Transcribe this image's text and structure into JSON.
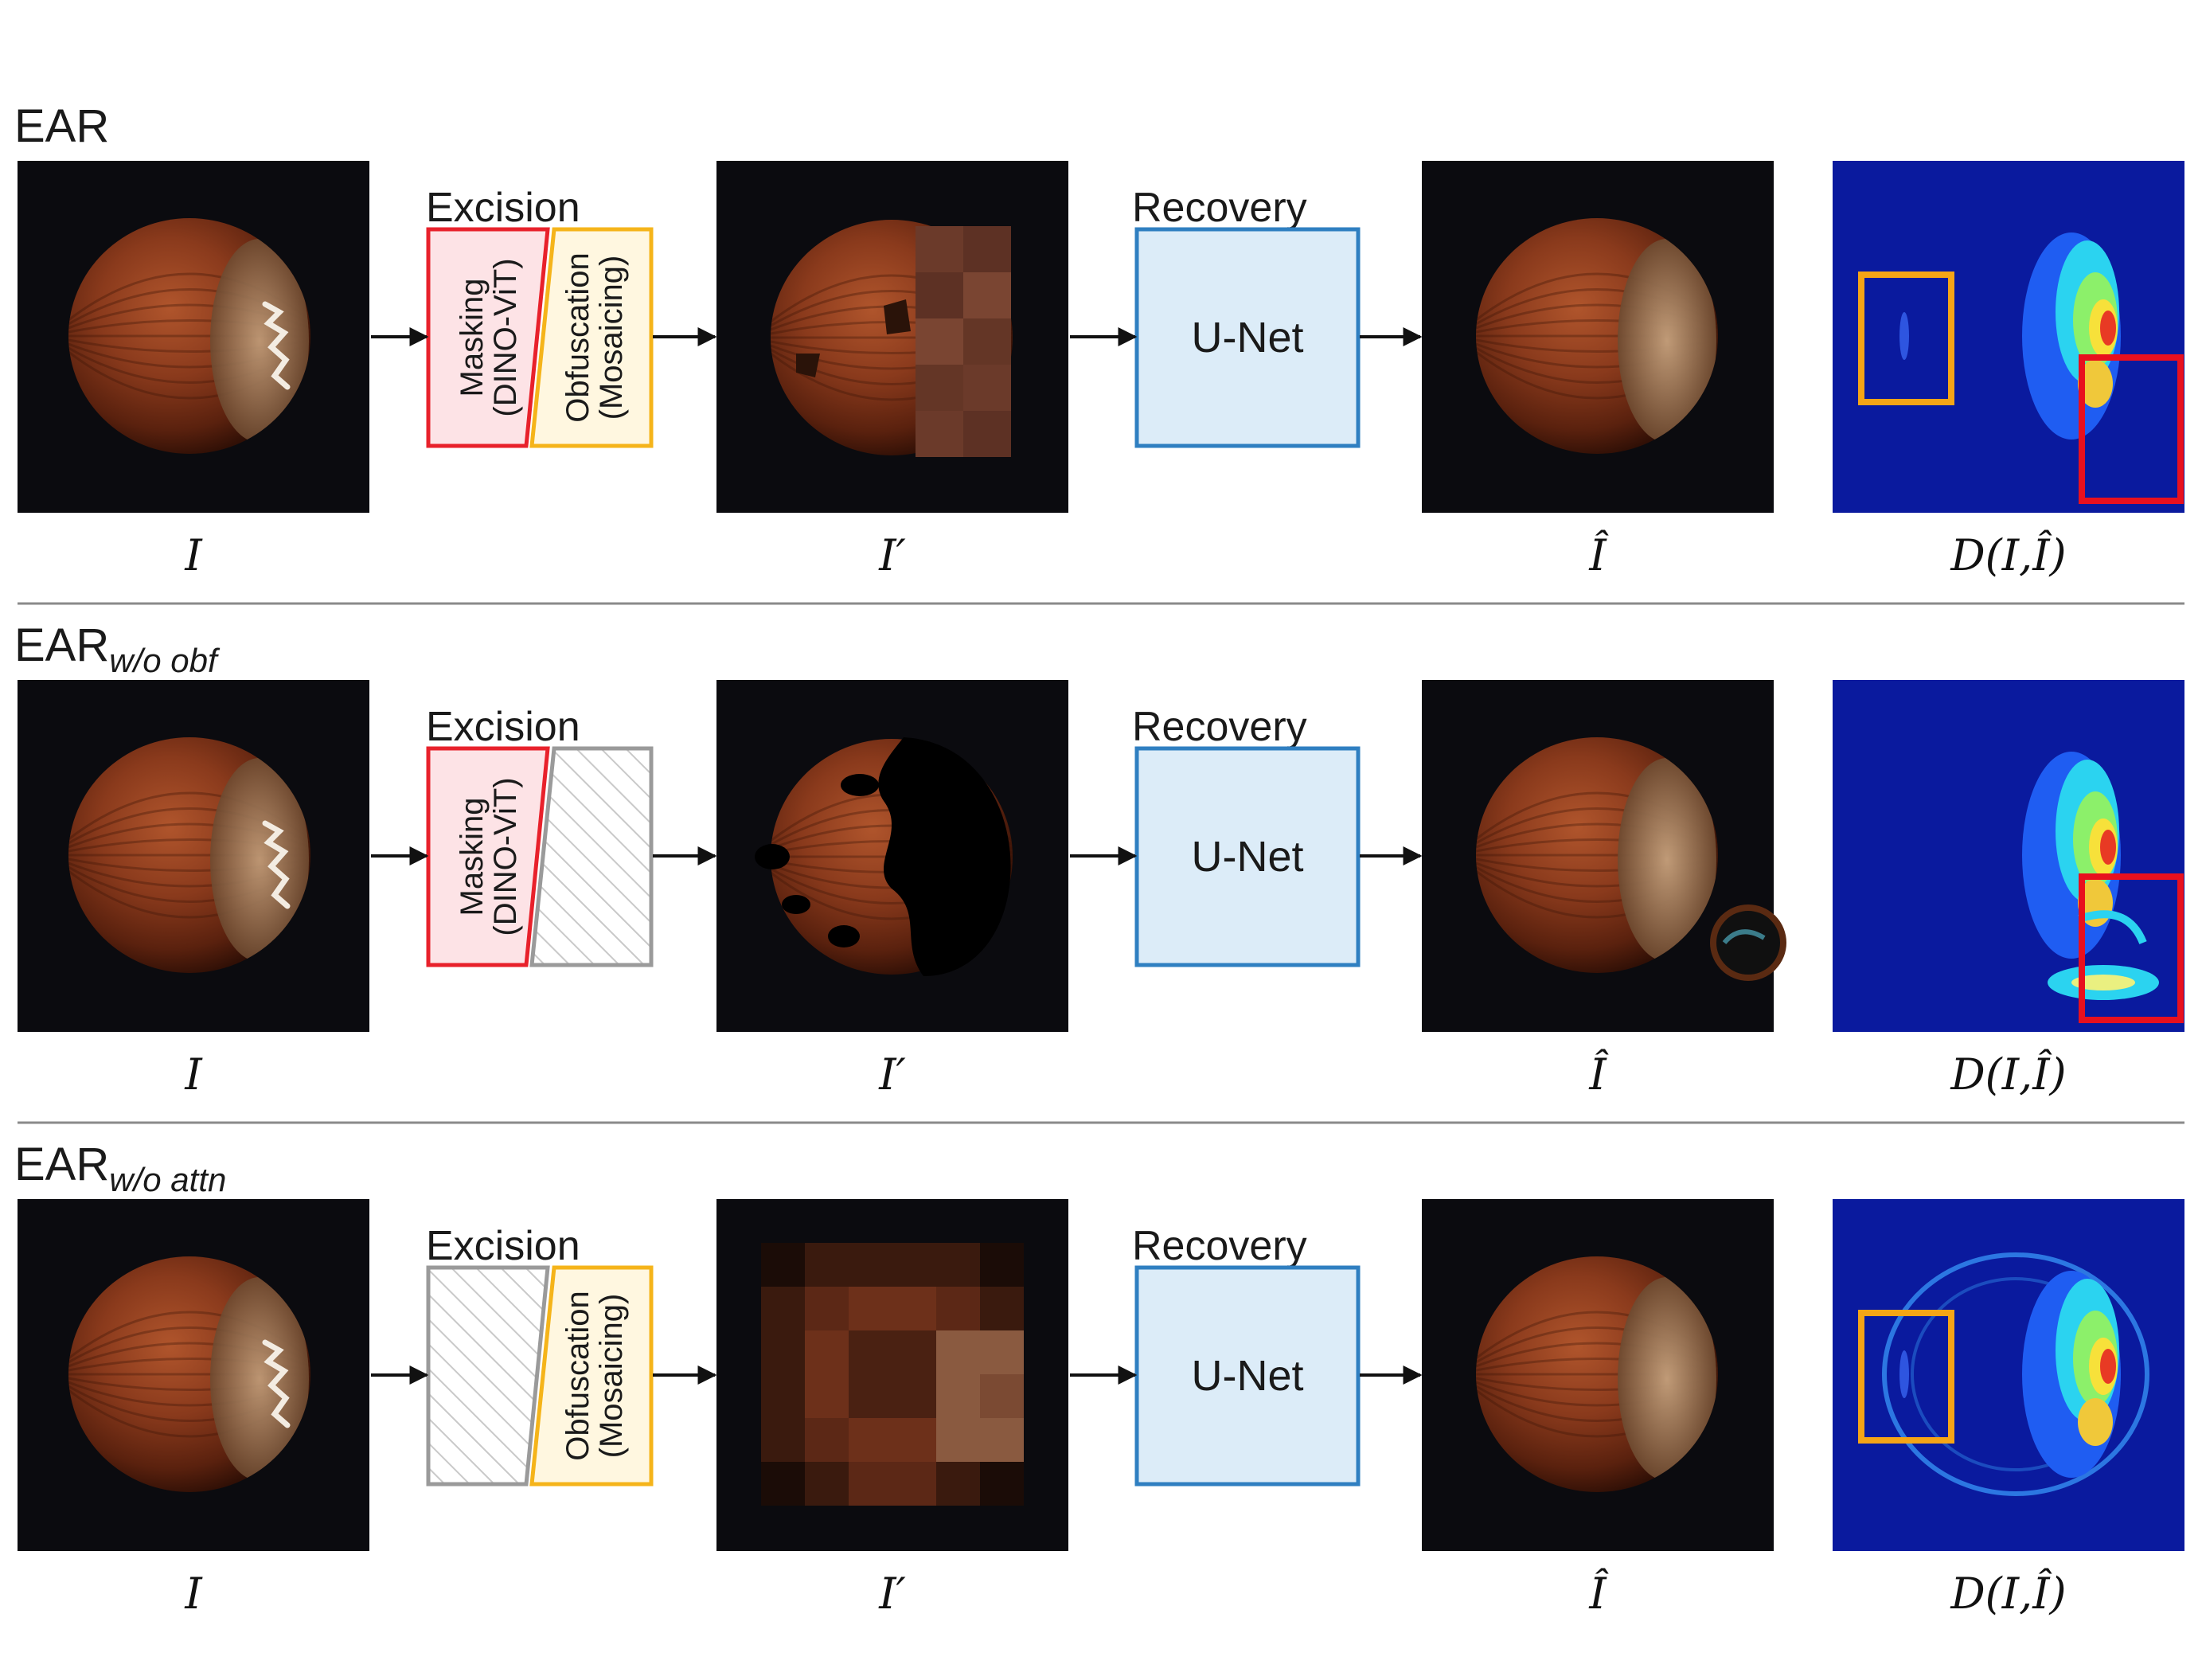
{
  "rows": [
    {
      "id": "ear",
      "title": "EAR",
      "subscript": "",
      "excision_title": "Excision",
      "masking_active": true,
      "obfuscation_active": true,
      "masking_label": "Masking",
      "masking_sub": "(DINO-ViT)",
      "obfuscation_label": "Obfuscation",
      "obfuscation_sub": "(Mosaicing)",
      "recovery_title": "Recovery",
      "unet_label": "U-Net",
      "input_variant": "masked-mosaic",
      "output_variant": "clean",
      "heatmap_variant": "ear",
      "captions": [
        "I",
        "I′",
        "Î",
        "D(I,Î)"
      ]
    },
    {
      "id": "ear-wo-obf",
      "title": "EAR",
      "subscript": "w/o obf",
      "excision_title": "Excision",
      "masking_active": true,
      "obfuscation_active": false,
      "masking_label": "Masking",
      "masking_sub": "(DINO-ViT)",
      "obfuscation_label": "",
      "obfuscation_sub": "",
      "recovery_title": "Recovery",
      "unet_label": "U-Net",
      "input_variant": "masked-black",
      "output_variant": "artifact",
      "heatmap_variant": "wo-obf",
      "captions": [
        "I",
        "I′",
        "Î",
        "D(I,Î)"
      ]
    },
    {
      "id": "ear-wo-attn",
      "title": "EAR",
      "subscript": "w/o attn",
      "excision_title": "Excision",
      "masking_active": false,
      "obfuscation_active": true,
      "masking_label": "",
      "masking_sub": "",
      "obfuscation_label": "Obfuscation",
      "obfuscation_sub": "(Mosaicing)",
      "recovery_title": "Recovery",
      "unet_label": "U-Net",
      "input_variant": "full-mosaic",
      "output_variant": "clean",
      "heatmap_variant": "wo-attn",
      "captions": [
        "I",
        "I′",
        "Î",
        "D(I,Î)"
      ]
    }
  ],
  "colors": {
    "masking_border": "#e8212b",
    "masking_fill": "#fde3e6",
    "obfuscation_border": "#f5b41a",
    "obfuscation_fill": "#fff7e0",
    "disabled_border": "#9a9a9a",
    "unet_border": "#2f7fc1",
    "unet_fill": "#dcecf8",
    "heatmap_bg": "#0a1a9e",
    "highlight_red": "#e8101e",
    "highlight_orange": "#f5a516"
  }
}
